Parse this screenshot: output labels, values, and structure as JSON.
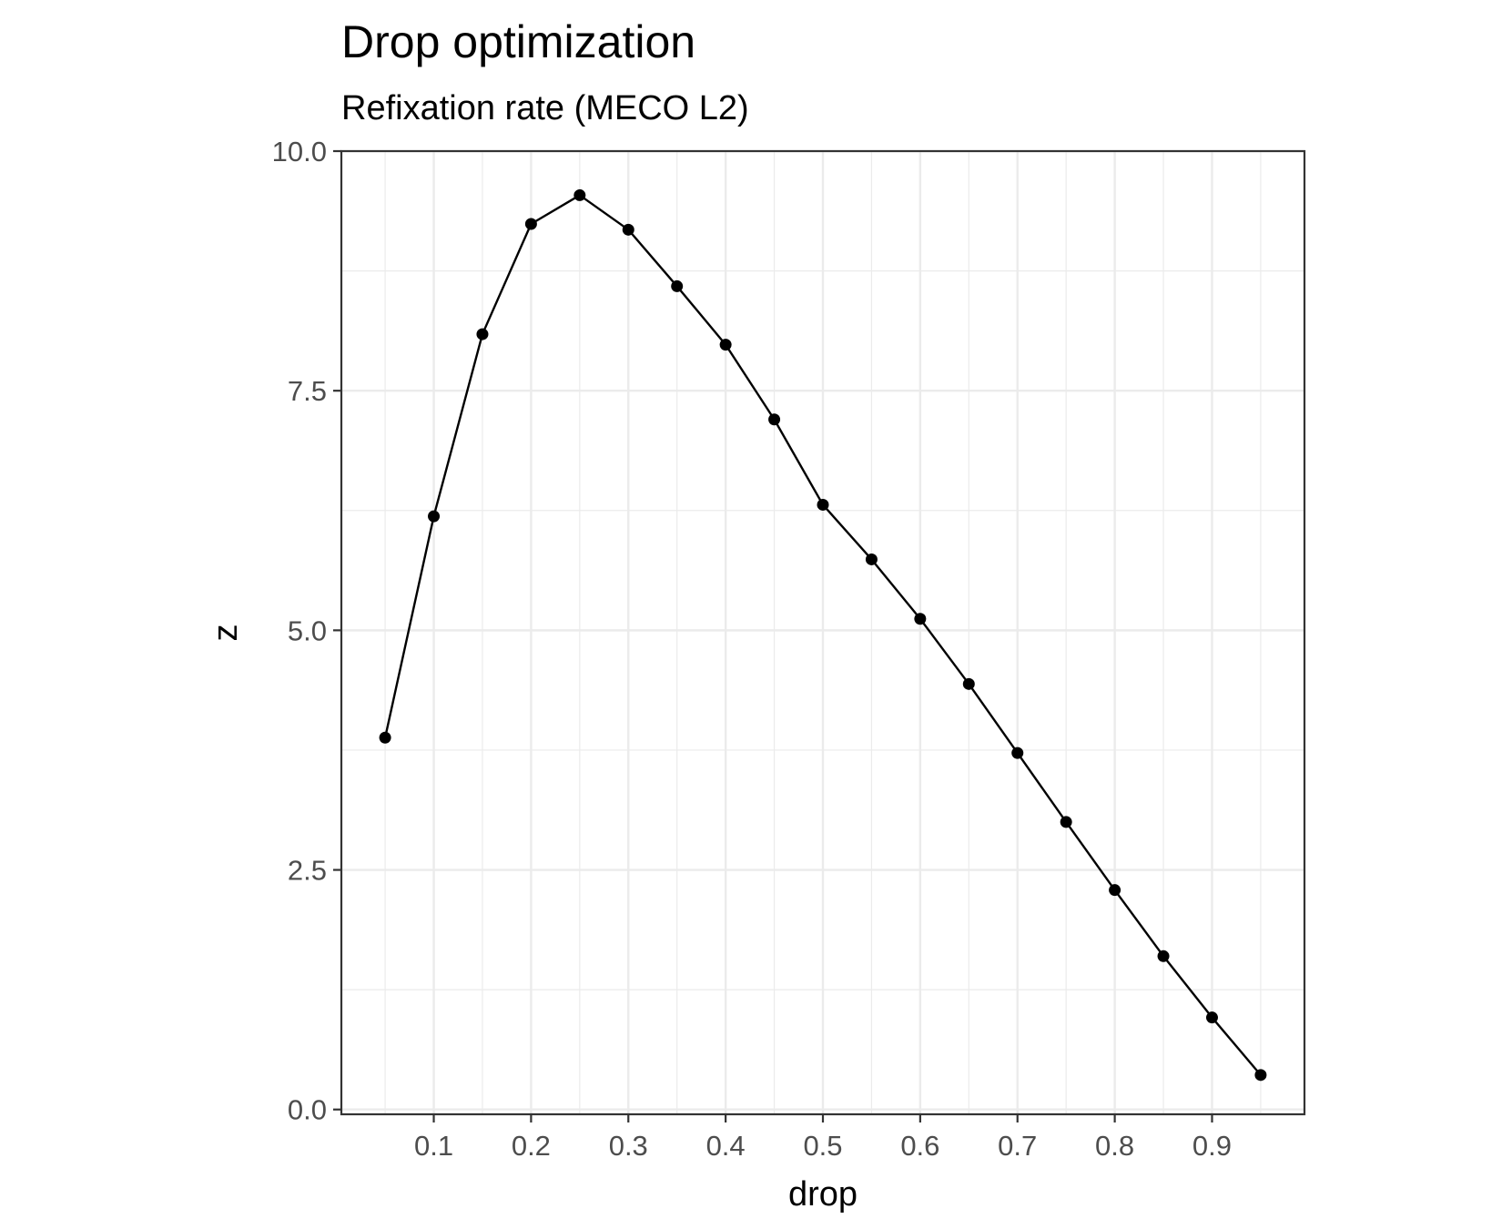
{
  "chart_data": {
    "type": "line",
    "title": "Drop optimization",
    "subtitle": "Refixation rate (MECO L2)",
    "xlabel": "drop",
    "ylabel": "z",
    "xlim": [
      0.005,
      0.995
    ],
    "ylim": [
      -0.05,
      10.0
    ],
    "x_ticks": [
      0.1,
      0.2,
      0.3,
      0.4,
      0.5,
      0.6,
      0.7,
      0.8,
      0.9
    ],
    "x_tick_labels": [
      "0.1",
      "0.2",
      "0.3",
      "0.4",
      "0.5",
      "0.6",
      "0.7",
      "0.8",
      "0.9"
    ],
    "y_ticks": [
      0.0,
      2.5,
      5.0,
      7.5,
      10.0
    ],
    "y_tick_labels": [
      "0.0",
      "2.5",
      "5.0",
      "7.5",
      "10.0"
    ],
    "grid": true,
    "legend": "none",
    "colors": {
      "line": "#000000",
      "points": "#000000",
      "grid": "#ebebeb",
      "panel_border": "#333333",
      "tick_label": "#4d4d4d"
    },
    "series": [
      {
        "x": [
          0.05,
          0.1,
          0.15,
          0.2,
          0.25,
          0.3,
          0.35,
          0.4,
          0.45,
          0.5,
          0.55,
          0.6,
          0.65,
          0.7,
          0.75,
          0.8,
          0.85,
          0.9,
          0.95
        ],
        "y": [
          3.88,
          6.19,
          8.09,
          9.24,
          9.54,
          9.18,
          8.59,
          7.98,
          7.2,
          6.31,
          5.74,
          5.12,
          4.44,
          3.72,
          3.0,
          2.29,
          1.6,
          0.96,
          0.36
        ]
      }
    ]
  }
}
